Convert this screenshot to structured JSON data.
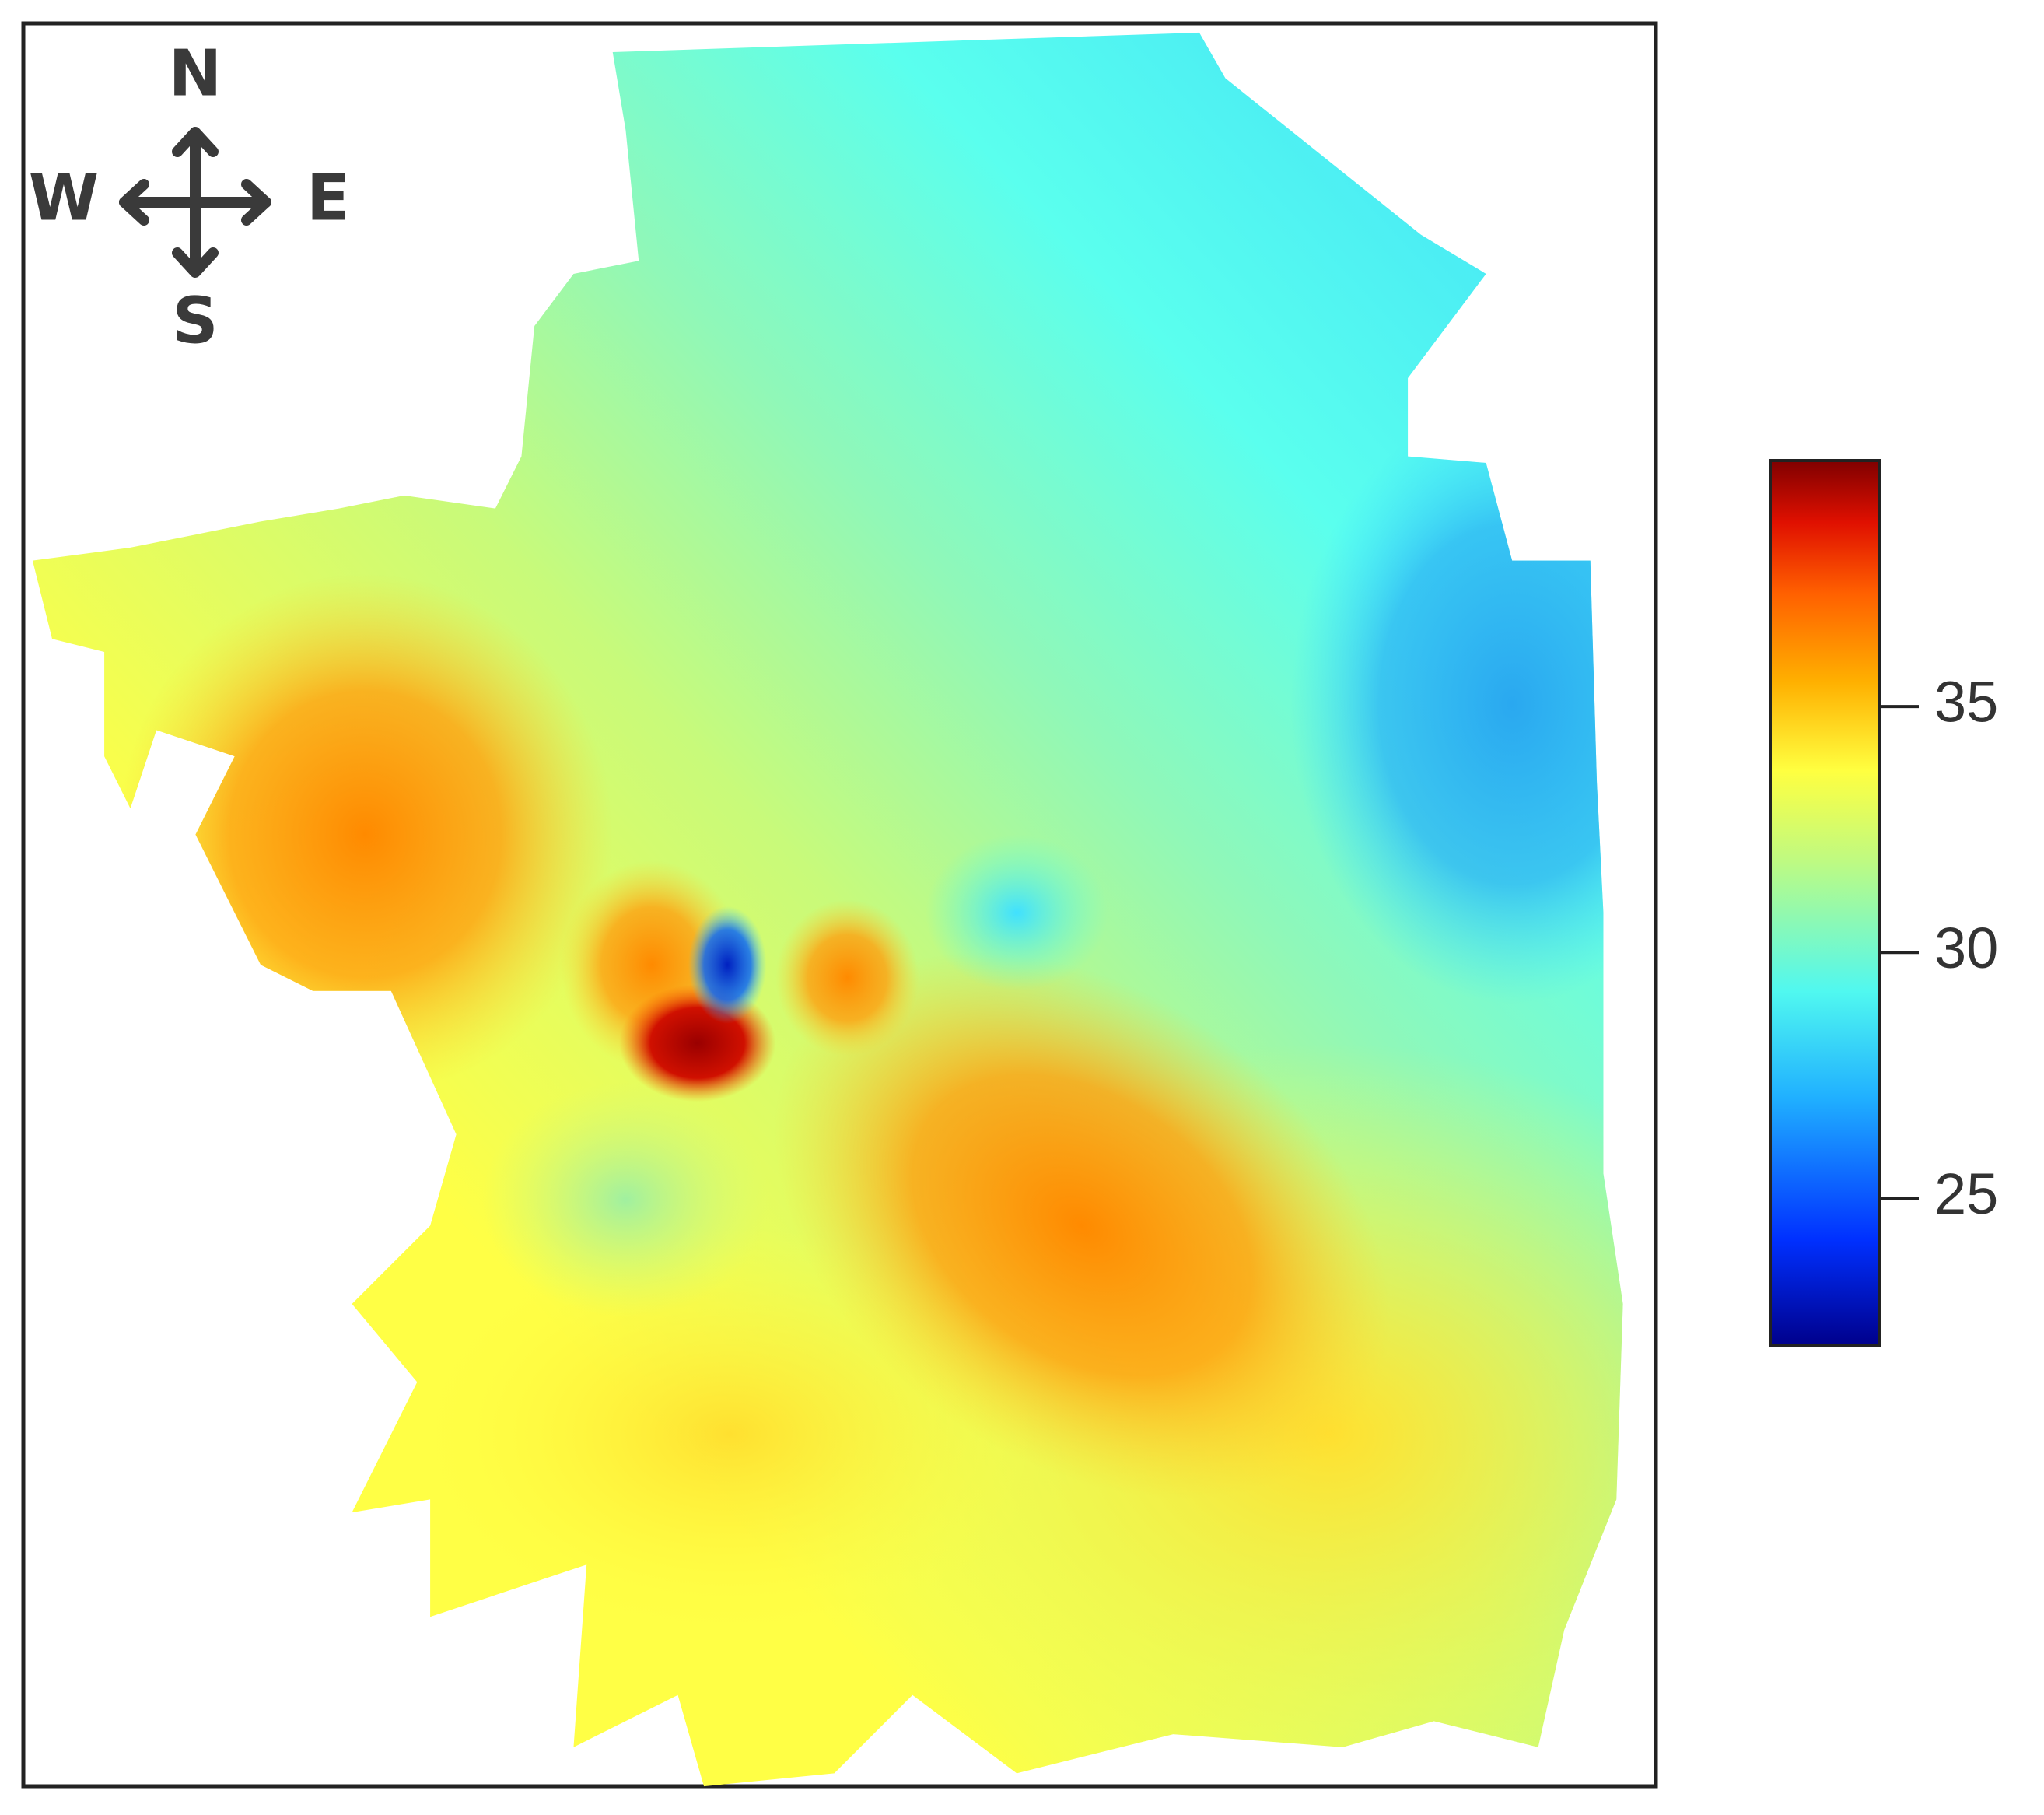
{
  "compass": {
    "north": "N",
    "east": "E",
    "south": "S",
    "west": "W"
  },
  "colorbar": {
    "range": [
      22,
      40
    ],
    "ticks": [
      25,
      30,
      35
    ]
  }
}
